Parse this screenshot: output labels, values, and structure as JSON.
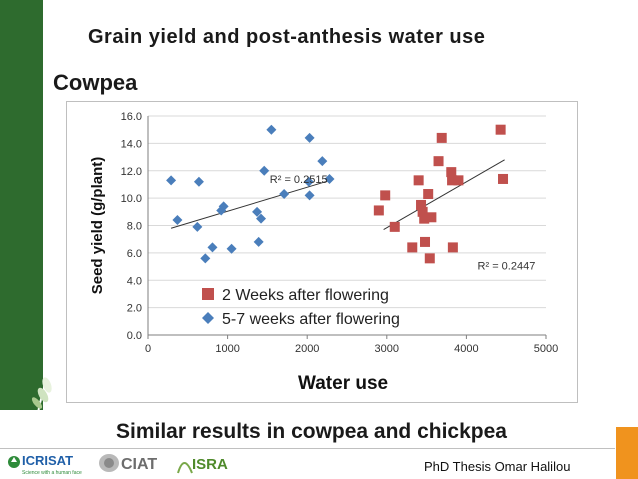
{
  "slide": {
    "title": "Grain yield and post-anthesis water use",
    "subtitle": "Cowpea",
    "xlabel": "Water use",
    "bottom_text": "Similar results in cowpea and chickpea",
    "footer_text": "PhD Thesis Omar Halilou",
    "colors": {
      "sidebar": "#2e6b2e",
      "accent": "#f0931e",
      "red_series": "#c0504d",
      "blue_series": "#4a7ebb"
    }
  },
  "logos": {
    "icrisat": {
      "name": "ICRISAT",
      "tagline": "Science with a human face"
    },
    "ciat": {
      "name": "CIAT"
    },
    "isra": {
      "name": "ISRA"
    }
  },
  "chart_data": {
    "type": "scatter",
    "xlabel": "Water use",
    "ylabel": "Seed yield (g/plant)",
    "xlim": [
      0,
      5000
    ],
    "ylim": [
      0,
      16
    ],
    "xticks": [
      "0",
      "1000",
      "2000",
      "3000",
      "4000",
      "5000"
    ],
    "yticks": [
      "0.0",
      "2.0",
      "4.0",
      "6.0",
      "8.0",
      "10.0",
      "12.0",
      "14.0",
      "16.0"
    ],
    "grid": "horizontal",
    "legend_position": "bottom-left",
    "series": [
      {
        "name": "2 Weeks after flowering",
        "marker": "square",
        "color": "#c0504d",
        "points": [
          [
            2900,
            9.1
          ],
          [
            2980,
            10.2
          ],
          [
            3100,
            7.9
          ],
          [
            3320,
            6.4
          ],
          [
            3400,
            11.3
          ],
          [
            3430,
            9.5
          ],
          [
            3450,
            9.0
          ],
          [
            3470,
            8.5
          ],
          [
            3480,
            6.8
          ],
          [
            3520,
            10.3
          ],
          [
            3540,
            5.6
          ],
          [
            3560,
            8.6
          ],
          [
            3650,
            12.7
          ],
          [
            3690,
            14.4
          ],
          [
            3810,
            11.9
          ],
          [
            3820,
            11.3
          ],
          [
            3830,
            6.4
          ],
          [
            3900,
            11.3
          ],
          [
            4430,
            15.0
          ],
          [
            4460,
            11.4
          ]
        ],
        "trendline": {
          "x": [
            2960,
            4480
          ],
          "y": [
            7.7,
            12.8
          ]
        },
        "r2_label": "R² = 0.2447"
      },
      {
        "name": "5-7 weeks after flowering",
        "marker": "diamond",
        "color": "#4a7ebb",
        "points": [
          [
            290,
            11.3
          ],
          [
            370,
            8.4
          ],
          [
            620,
            7.9
          ],
          [
            640,
            11.2
          ],
          [
            720,
            5.6
          ],
          [
            810,
            6.4
          ],
          [
            920,
            9.1
          ],
          [
            950,
            9.4
          ],
          [
            1050,
            6.3
          ],
          [
            1370,
            9.0
          ],
          [
            1390,
            6.8
          ],
          [
            1420,
            8.5
          ],
          [
            1460,
            12.0
          ],
          [
            1550,
            15.0
          ],
          [
            1710,
            10.3
          ],
          [
            2020,
            11.2
          ],
          [
            2030,
            10.2
          ],
          [
            2030,
            14.4
          ],
          [
            2190,
            12.7
          ],
          [
            2280,
            11.4
          ]
        ],
        "trendline": {
          "x": [
            290,
            2290
          ],
          "y": [
            7.8,
            11.3
          ]
        },
        "r2_label": "R² = 0.2515"
      }
    ]
  }
}
